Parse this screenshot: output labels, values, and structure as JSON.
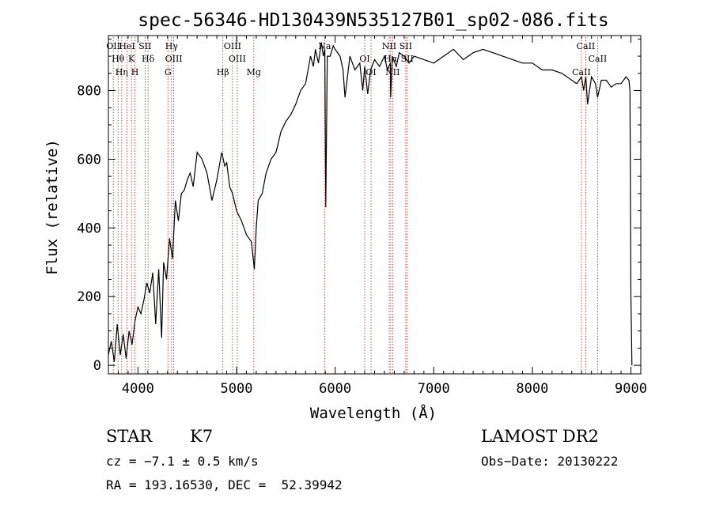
{
  "chart_data": {
    "type": "line",
    "title": "spec-56346-HD130439N535127B01_sp02-086.fits",
    "xlabel": "Wavelength (Å)",
    "ylabel": "Flux (relative)",
    "xlim": [
      3700,
      9100
    ],
    "ylim": [
      -25,
      960
    ],
    "x_ticks": [
      "4000",
      "5000",
      "6000",
      "7000",
      "8000",
      "9000"
    ],
    "y_ticks": [
      "0",
      "200",
      "400",
      "600",
      "800"
    ],
    "grid": false,
    "series": [
      {
        "x": [
          3700,
          3730,
          3760,
          3790,
          3820,
          3850,
          3880,
          3910,
          3940,
          3970,
          4000,
          4030,
          4060,
          4090,
          4120,
          4150,
          4180,
          4210,
          4240,
          4260,
          4290,
          4320,
          4350,
          4380,
          4410,
          4440,
          4470,
          4500,
          4530,
          4560,
          4600,
          4650,
          4700,
          4750,
          4800,
          4850,
          4880,
          4900,
          4930,
          4960,
          5000,
          5050,
          5100,
          5150,
          5180,
          5200,
          5220,
          5260,
          5300,
          5350,
          5400,
          5450,
          5500,
          5550,
          5600,
          5650,
          5700,
          5750,
          5780,
          5800,
          5830,
          5860,
          5880,
          5895,
          5905,
          5920,
          5950,
          5980,
          6000,
          6050,
          6080,
          6100,
          6150,
          6200,
          6250,
          6280,
          6300,
          6330,
          6360,
          6400,
          6450,
          6500,
          6530,
          6560,
          6563,
          6580,
          6620,
          6650,
          6700,
          6750,
          6800,
          6900,
          7000,
          7100,
          7200,
          7300,
          7400,
          7500,
          7600,
          7700,
          7800,
          7900,
          8000,
          8100,
          8200,
          8300,
          8400,
          8450,
          8498,
          8520,
          8542,
          8560,
          8600,
          8640,
          8662,
          8700,
          8750,
          8800,
          8850,
          8900,
          8950,
          8980,
          8990,
          9000,
          9010
        ],
        "y": [
          30,
          70,
          10,
          120,
          30,
          90,
          20,
          100,
          60,
          130,
          170,
          150,
          190,
          240,
          210,
          270,
          120,
          280,
          80,
          300,
          250,
          370,
          310,
          480,
          420,
          500,
          510,
          540,
          560,
          520,
          620,
          600,
          560,
          480,
          540,
          620,
          580,
          590,
          520,
          500,
          450,
          420,
          380,
          360,
          280,
          400,
          480,
          500,
          560,
          600,
          620,
          680,
          710,
          730,
          760,
          800,
          820,
          900,
          870,
          920,
          880,
          940,
          900,
          920,
          460,
          900,
          900,
          930,
          920,
          900,
          860,
          780,
          900,
          860,
          880,
          800,
          870,
          790,
          860,
          890,
          870,
          900,
          860,
          880,
          780,
          900,
          870,
          910,
          900,
          880,
          900,
          890,
          880,
          900,
          920,
          890,
          910,
          920,
          910,
          900,
          890,
          880,
          880,
          860,
          860,
          850,
          830,
          820,
          840,
          800,
          840,
          760,
          840,
          820,
          780,
          830,
          830,
          810,
          820,
          820,
          840,
          830,
          800,
          200,
          0
        ]
      }
    ],
    "line_markers": [
      {
        "x": 3750,
        "label": "OII"
      },
      {
        "x": 3798,
        "label": "Hθ"
      },
      {
        "x": 3835,
        "label": "Hη"
      },
      {
        "x": 3889,
        "label": "HeI"
      },
      {
        "x": 3934,
        "label": "K"
      },
      {
        "x": 3969,
        "label": "H"
      },
      {
        "x": 4072,
        "label": "SII"
      },
      {
        "x": 4102,
        "label": "Hδ"
      },
      {
        "x": 4304,
        "label": "G"
      },
      {
        "x": 4341,
        "label": "Hγ"
      },
      {
        "x": 4363,
        "label": "OIII"
      },
      {
        "x": 4861,
        "label": "Hβ"
      },
      {
        "x": 4959,
        "label": "OIII"
      },
      {
        "x": 5007,
        "label": "OIII"
      },
      {
        "x": 5175,
        "label": "Mg"
      },
      {
        "x": 5893,
        "label": "Na"
      },
      {
        "x": 6300,
        "label": "OI"
      },
      {
        "x": 6364,
        "label": "OI"
      },
      {
        "x": 6548,
        "label": "NII"
      },
      {
        "x": 6563,
        "label": "Hα"
      },
      {
        "x": 6583,
        "label": "NII"
      },
      {
        "x": 6716,
        "label": "SII"
      },
      {
        "x": 6731,
        "label": "SII"
      },
      {
        "x": 8498,
        "label": "CaII"
      },
      {
        "x": 8542,
        "label": "CaII"
      },
      {
        "x": 8662,
        "label": "CaII"
      }
    ]
  },
  "info": {
    "class_label": "STAR",
    "subclass_label": "K7",
    "survey_label": "LAMOST DR2",
    "cz_text": "cz = −7.1 ± 0.5 km/s",
    "obs_date_text": "Obs−Date: 20130222",
    "coords_text": "RA = 193.16530, DEC =  52.39942"
  }
}
